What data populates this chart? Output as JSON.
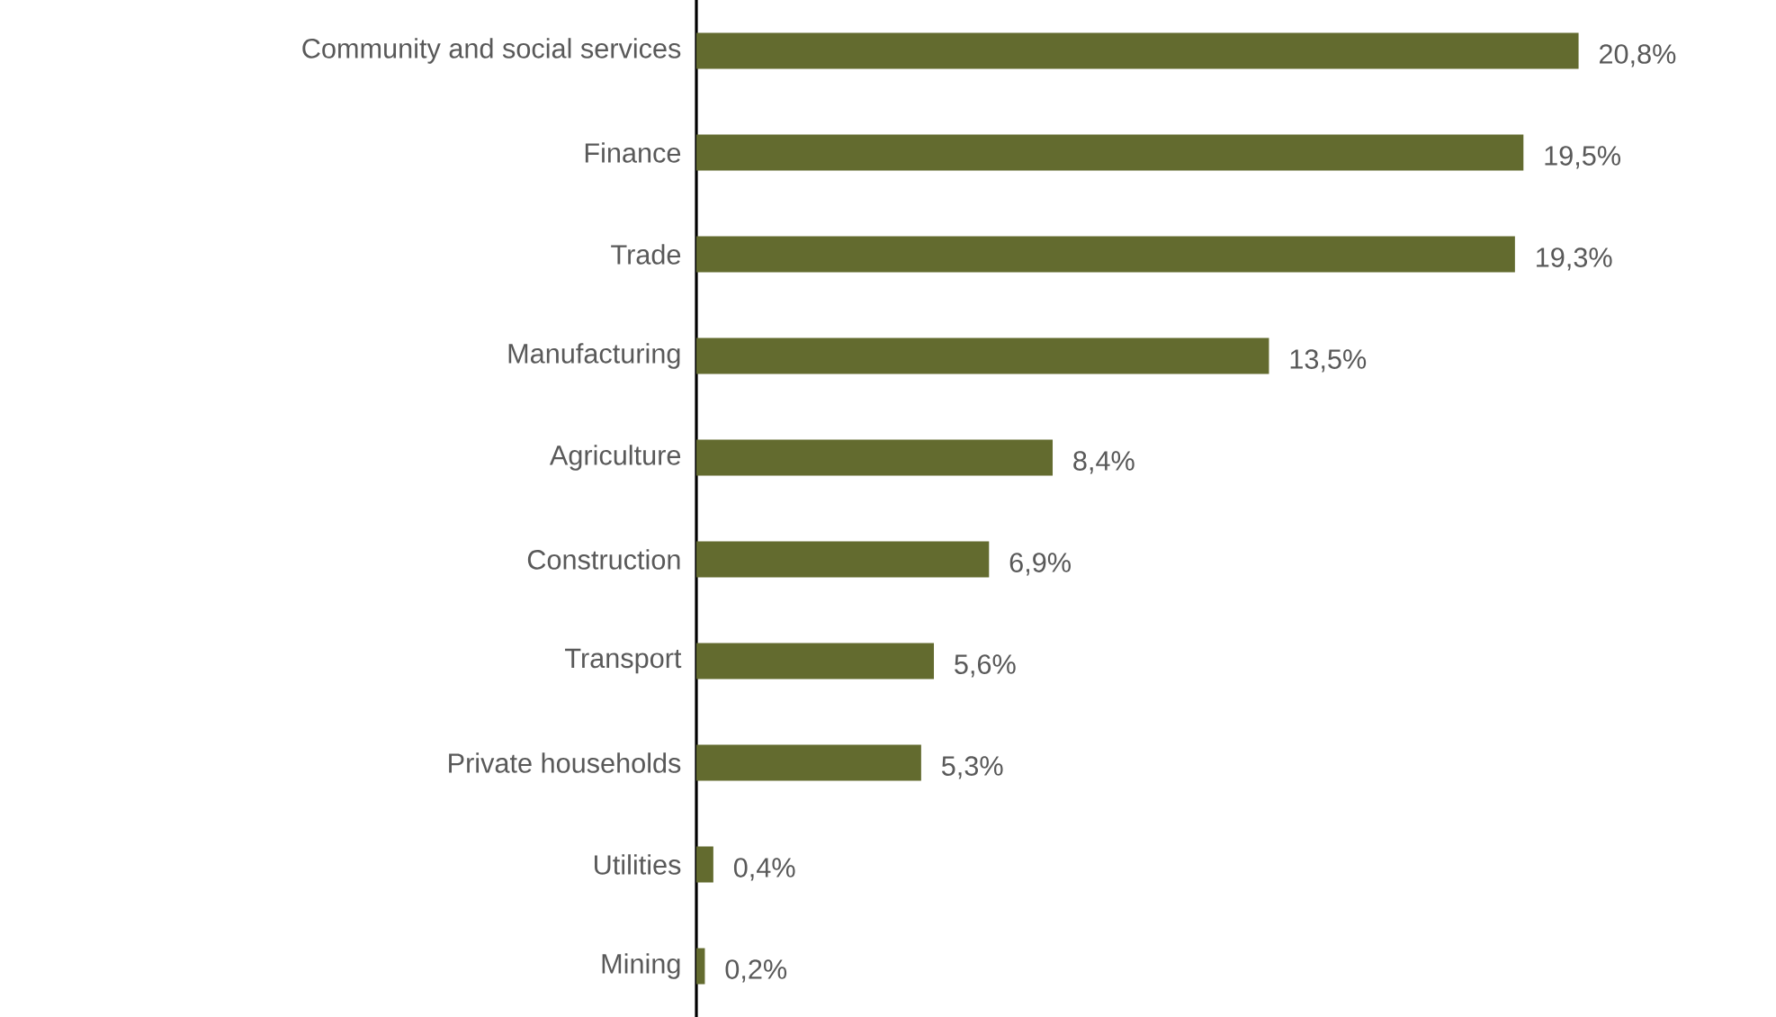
{
  "chart_data": {
    "type": "bar",
    "orientation": "horizontal",
    "categories": [
      "Community and social services",
      "Finance",
      "Trade",
      "Manufacturing",
      "Agriculture",
      "Construction",
      "Transport",
      "Private households",
      "Utilities",
      "Mining"
    ],
    "values": [
      20.8,
      19.5,
      19.3,
      13.5,
      8.4,
      6.9,
      5.6,
      5.3,
      0.4,
      0.2
    ],
    "value_labels": [
      "20,8%",
      "19,5%",
      "19,3%",
      "13,5%",
      "8,4%",
      "6,9%",
      "5,6%",
      "5,3%",
      "0,4%",
      "0,2%"
    ],
    "color": "#636b2f"
  }
}
